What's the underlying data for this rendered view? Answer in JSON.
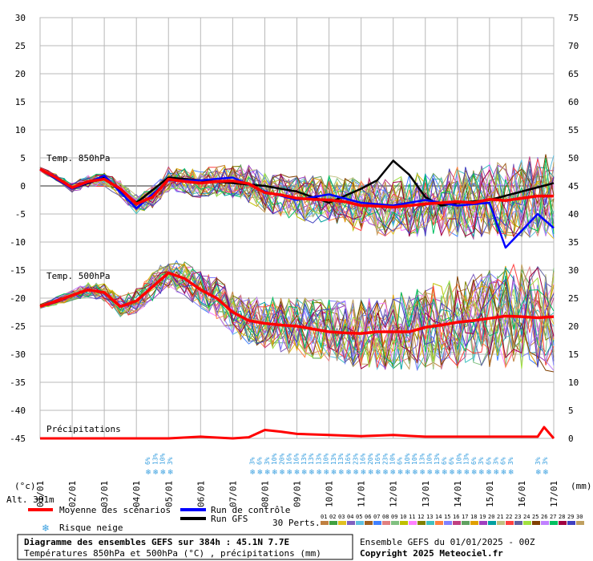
{
  "chart_data": {
    "type": "line",
    "left_axis": {
      "unit": "(°c)",
      "min": -45,
      "max": 30,
      "ticks": [
        30,
        25,
        20,
        15,
        10,
        5,
        0,
        -5,
        -10,
        -15,
        -20,
        -25,
        -30,
        -35,
        -40,
        -45
      ]
    },
    "right_axis": {
      "unit": "(mm)",
      "min": 0,
      "max": 75,
      "ticks": [
        75,
        70,
        65,
        60,
        55,
        50,
        45,
        40,
        35,
        30,
        25,
        20,
        15,
        10,
        5,
        0
      ]
    },
    "x_ticks": [
      "01/01",
      "02/01",
      "03/01",
      "04/01",
      "05/01",
      "06/01",
      "07/01",
      "08/01",
      "09/01",
      "10/01",
      "11/01",
      "12/01",
      "13/01",
      "14/01",
      "15/01",
      "16/01",
      "17/01"
    ],
    "panel_labels": {
      "t850": "Temp. 850hPa",
      "t500": "Temp. 500hPa",
      "precip": "Précipitations"
    },
    "series_mean_850": {
      "name": "Moyenne des scénarios",
      "color": "#ff0000",
      "t": [
        0,
        0.5,
        1,
        1.5,
        2,
        2.5,
        3,
        3.5,
        4,
        4.5,
        5,
        5.5,
        6,
        6.5,
        7,
        7.5,
        8,
        8.5,
        9,
        9.5,
        10,
        10.5,
        11,
        11.5,
        12,
        12.5,
        13,
        13.5,
        14,
        14.5,
        15,
        15.5,
        16
      ],
      "values": [
        3,
        1.5,
        -0.3,
        0.8,
        1.2,
        -0.5,
        -3.2,
        -2,
        1.2,
        0.8,
        0.5,
        0.8,
        0.9,
        0.4,
        -1.2,
        -1.6,
        -2.2,
        -2.4,
        -2.5,
        -2.8,
        -3.5,
        -3.6,
        -3.8,
        -3.5,
        -3.2,
        -3,
        -2.8,
        -3,
        -2.4,
        -2.6,
        -2.2,
        -1.8,
        -1.8
      ]
    },
    "series_mean_500": {
      "name": "Moyenne des scénarios",
      "color": "#ff0000",
      "t": [
        0,
        0.5,
        1,
        1.5,
        2,
        2.5,
        3,
        3.5,
        4,
        4.5,
        5,
        5.5,
        6,
        6.5,
        7,
        7.5,
        8,
        8.5,
        9,
        9.5,
        10,
        10.5,
        11,
        11.5,
        12,
        12.5,
        13,
        13.5,
        14,
        14.5,
        15,
        15.5,
        16
      ],
      "values": [
        -21.5,
        -20.5,
        -19.5,
        -18.5,
        -19,
        -21.5,
        -20.5,
        -18,
        -15.5,
        -16.5,
        -18.5,
        -20,
        -22.5,
        -24,
        -24.5,
        -24.8,
        -25,
        -25.5,
        -26,
        -26.2,
        -26.3,
        -26,
        -26,
        -26,
        -25.2,
        -24.8,
        -24.3,
        -24,
        -23.6,
        -23.2,
        -23.3,
        -23.5,
        -23.3
      ]
    },
    "series_control_850": {
      "name": "Run de contrôle",
      "color": "#0000ff",
      "t": [
        0,
        1,
        2,
        3,
        4,
        5,
        6,
        7,
        8,
        9,
        10,
        11,
        12,
        13,
        14,
        14.5,
        15,
        15.5,
        16
      ],
      "values": [
        3,
        -0.5,
        1.8,
        -4,
        1,
        1,
        1.5,
        -1,
        -2.5,
        -1.5,
        -3,
        -3.5,
        -2.5,
        -3.5,
        -3,
        -11,
        -8,
        -5,
        -7.5
      ]
    },
    "series_gfs_850": {
      "name": "Run GFS",
      "color": "#000000",
      "t": [
        0,
        1,
        2,
        3,
        4,
        5,
        6,
        7,
        8,
        9,
        10,
        10.5,
        11,
        11.5,
        12,
        12.5,
        13,
        14,
        15,
        16
      ],
      "values": [
        3,
        -0.5,
        1.5,
        -3,
        1.5,
        1,
        0.5,
        0,
        -1,
        -3,
        -0.5,
        1,
        4.5,
        2,
        -2,
        -3.5,
        -3,
        -2.5,
        -1,
        0.5
      ]
    },
    "precip_mean": {
      "name": "Moyenne des scénarios",
      "color": "#ff0000",
      "t": [
        0,
        4,
        5,
        6,
        6.5,
        7,
        7.5,
        8,
        9,
        10,
        11,
        12,
        13,
        14,
        15,
        15.5,
        15.7,
        16
      ],
      "values": [
        0,
        0,
        0.3,
        0,
        0.2,
        1.5,
        1.2,
        0.8,
        0.6,
        0.4,
        0.6,
        0.3,
        0.3,
        0.3,
        0.3,
        0.3,
        2,
        0
      ]
    },
    "snow_risk_labels": [
      {
        "t": 3.35,
        "label": "6%"
      },
      {
        "t": 3.58,
        "label": "13%"
      },
      {
        "t": 3.81,
        "label": "10%"
      },
      {
        "t": 4.04,
        "label": "3%"
      },
      {
        "t": 6.6,
        "label": "3%"
      },
      {
        "t": 6.83,
        "label": "6%"
      },
      {
        "t": 7.06,
        "label": "3%"
      },
      {
        "t": 7.29,
        "label": "10%"
      },
      {
        "t": 7.52,
        "label": "20%"
      },
      {
        "t": 7.75,
        "label": "16%"
      },
      {
        "t": 7.98,
        "label": "16%"
      },
      {
        "t": 8.21,
        "label": "13%"
      },
      {
        "t": 8.44,
        "label": "13%"
      },
      {
        "t": 8.67,
        "label": "13%"
      },
      {
        "t": 8.9,
        "label": "10%"
      },
      {
        "t": 9.13,
        "label": "13%"
      },
      {
        "t": 9.36,
        "label": "13%"
      },
      {
        "t": 9.59,
        "label": "16%"
      },
      {
        "t": 9.82,
        "label": "23%"
      },
      {
        "t": 10.05,
        "label": "16%"
      },
      {
        "t": 10.28,
        "label": "20%"
      },
      {
        "t": 10.51,
        "label": "16%"
      },
      {
        "t": 10.74,
        "label": "23%"
      },
      {
        "t": 10.97,
        "label": "10%"
      },
      {
        "t": 11.2,
        "label": "6%"
      },
      {
        "t": 11.43,
        "label": "10%"
      },
      {
        "t": 11.66,
        "label": "10%"
      },
      {
        "t": 11.89,
        "label": "13%"
      },
      {
        "t": 12.12,
        "label": "10%"
      },
      {
        "t": 12.35,
        "label": "13%"
      },
      {
        "t": 12.58,
        "label": "6%"
      },
      {
        "t": 12.81,
        "label": "6%"
      },
      {
        "t": 13.04,
        "label": "10%"
      },
      {
        "t": 13.27,
        "label": "13%"
      },
      {
        "t": 13.5,
        "label": "6%"
      },
      {
        "t": 13.73,
        "label": "3%"
      },
      {
        "t": 13.96,
        "label": "6%"
      },
      {
        "t": 14.19,
        "label": "3%"
      },
      {
        "t": 14.42,
        "label": "6%"
      },
      {
        "t": 14.65,
        "label": "3%"
      },
      {
        "t": 15.5,
        "label": "3%"
      },
      {
        "t": 15.73,
        "label": "3%"
      }
    ]
  },
  "legend": {
    "altitude": "Alt. 381m",
    "mean_label": "Moyenne des scénarios",
    "control_label": "Run de contrôle",
    "gfs_label": "Run GFS",
    "snow_label": "Risque neige",
    "perts_label": "30 Perts.",
    "pert_numbers": [
      "01",
      "02",
      "03",
      "04",
      "05",
      "06",
      "07",
      "08",
      "09",
      "10",
      "11",
      "12",
      "13",
      "14",
      "15",
      "16",
      "17",
      "18",
      "19",
      "20",
      "21",
      "22",
      "23",
      "24",
      "25",
      "26",
      "27",
      "28",
      "29",
      "30"
    ],
    "pert_colors": [
      "#c08040",
      "#40a040",
      "#e0c020",
      "#8060c0",
      "#60c0e0",
      "#a06020",
      "#4080ff",
      "#e08080",
      "#80c080",
      "#c0c000",
      "#ff80ff",
      "#808000",
      "#40c0c0",
      "#ff8040",
      "#8080ff",
      "#c04080",
      "#60a060",
      "#e0a000",
      "#a040c0",
      "#00a0a0",
      "#c0c080",
      "#ff4040",
      "#6060a0",
      "#a0e040",
      "#804000",
      "#c080ff",
      "#00c060",
      "#a00040",
      "#4040c0",
      "#c0a060"
    ]
  },
  "footer": {
    "title": "Diagramme des ensembles GEFS sur 384h : 45.1N 7.7E",
    "subtitle": "Températures 850hPa et 500hPa (°C) , précipitations (mm)",
    "run_info": "Ensemble GEFS du 01/01/2025 - 00Z",
    "copyright": "Copyright 2025 Meteociel.fr"
  }
}
